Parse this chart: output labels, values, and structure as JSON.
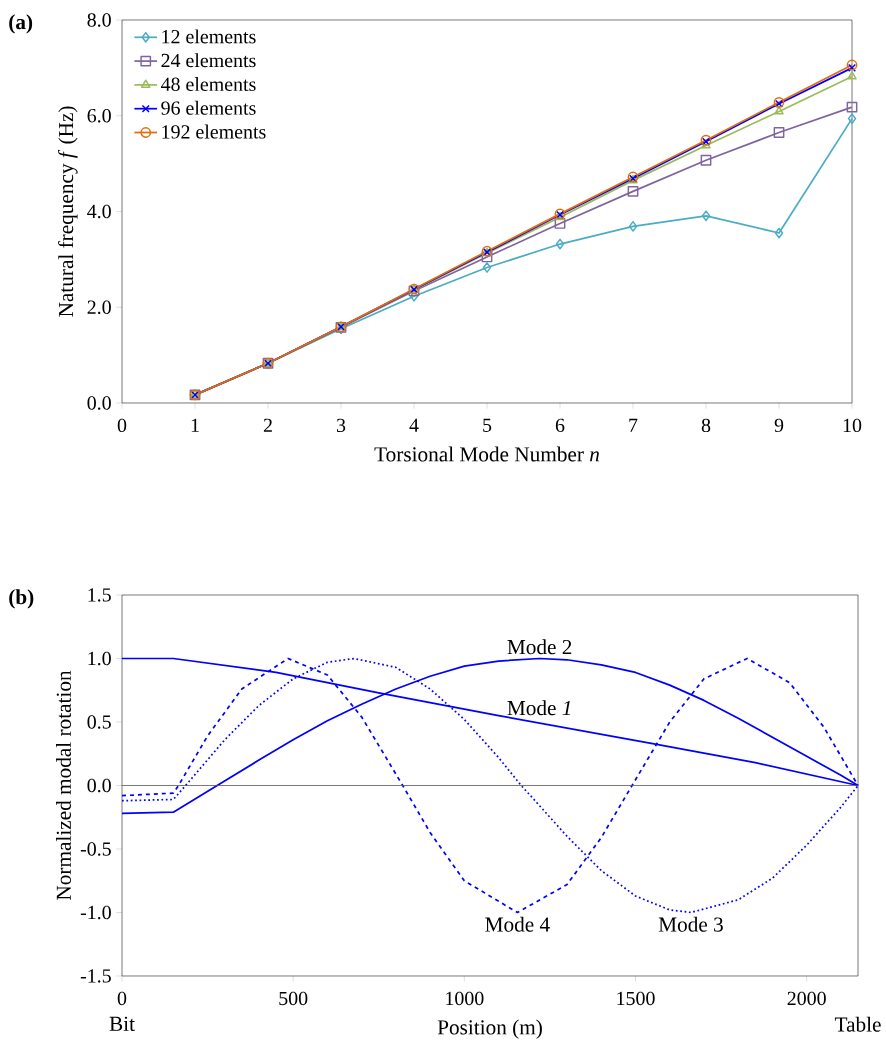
{
  "chart_data": [
    {
      "type": "line",
      "title": "(a)",
      "xlabel": "Torsional Mode Number *n*",
      "ylabel": "Natural frequency *f* (Hz)",
      "x": [
        1,
        2,
        3,
        4,
        5,
        6,
        7,
        8,
        9,
        10
      ],
      "series": [
        {
          "name": "12 elements",
          "color": "#4bacc6",
          "marker": "diamond",
          "values": [
            0.17,
            0.83,
            1.55,
            2.23,
            2.83,
            3.32,
            3.69,
            3.91,
            3.55,
            5.94
          ]
        },
        {
          "name": "24 elements",
          "color": "#8064a2",
          "marker": "square",
          "values": [
            0.17,
            0.83,
            1.58,
            2.34,
            3.05,
            3.75,
            4.42,
            5.07,
            5.65,
            6.18
          ]
        },
        {
          "name": "48 elements",
          "color": "#9bbb59",
          "marker": "triangle",
          "values": [
            0.17,
            0.83,
            1.59,
            2.36,
            3.13,
            3.88,
            4.65,
            5.38,
            6.09,
            6.82
          ]
        },
        {
          "name": "96 elements",
          "color": "#0000ff",
          "marker": "cross",
          "values": [
            0.17,
            0.83,
            1.59,
            2.37,
            3.15,
            3.93,
            4.69,
            5.46,
            6.25,
            7.0
          ]
        },
        {
          "name": "192 elements",
          "color": "#e46c0a",
          "marker": "circle",
          "values": [
            0.17,
            0.83,
            1.59,
            2.38,
            3.17,
            3.95,
            4.72,
            5.49,
            6.28,
            7.06
          ]
        }
      ],
      "xlim": [
        0,
        10
      ],
      "ylim": [
        0,
        8
      ],
      "xticks": [
        0,
        1,
        2,
        3,
        4,
        5,
        6,
        7,
        8,
        9,
        10
      ],
      "yticks": [
        {
          "value": 0,
          "label": "0.0"
        },
        {
          "value": 2,
          "label": "2.0"
        },
        {
          "value": 4,
          "label": "4.0"
        },
        {
          "value": 6,
          "label": "6.0"
        },
        {
          "value": 8,
          "label": "8.0"
        }
      ],
      "legend": "top left"
    },
    {
      "type": "line",
      "title": "(b)",
      "xlabel": "Position (m)",
      "ylabel": "Normalized modal rotation",
      "series": [
        {
          "color": "#0000ff",
          "line_style": "solid",
          "x": [
            0,
            150,
            450,
            750,
            1100,
            1550,
            1850,
            2150
          ],
          "values": [
            1.0,
            1.0,
            0.89,
            0.73,
            0.55,
            0.33,
            0.18,
            0
          ]
        },
        {
          "color": "#0000ff",
          "line_style": "solid",
          "x": [
            0,
            150,
            278,
            400,
            500,
            600,
            700,
            800,
            900,
            1000,
            1100,
            1220,
            1300,
            1400,
            1500,
            1600,
            1700,
            1800,
            1900,
            2000,
            2100,
            2150
          ],
          "values": [
            -0.22,
            -0.21,
            0,
            0.2,
            0.36,
            0.51,
            0.64,
            0.76,
            0.86,
            0.94,
            0.98,
            1.0,
            0.99,
            0.95,
            0.89,
            0.79,
            0.67,
            0.53,
            0.38,
            0.23,
            0.08,
            0
          ]
        },
        {
          "color": "#0000ff",
          "line_style": "dotted",
          "x": [
            0,
            150,
            186,
            300,
            400,
            500,
            600,
            678,
            800,
            900,
            1000,
            1100,
            1166,
            1200,
            1300,
            1400,
            1500,
            1600,
            1662,
            1800,
            1900,
            2000,
            2100,
            2150
          ],
          "values": [
            -0.12,
            -0.11,
            0,
            0.36,
            0.63,
            0.84,
            0.97,
            1.0,
            0.93,
            0.76,
            0.52,
            0.22,
            0,
            -0.1,
            -0.4,
            -0.67,
            -0.87,
            -0.98,
            -1.0,
            -0.9,
            -0.73,
            -0.47,
            -0.17,
            0
          ]
        },
        {
          "color": "#0000ff",
          "line_style": "dashed",
          "x": [
            0,
            150,
            165,
            250,
            350,
            485,
            600,
            700,
            820,
            900,
            1000,
            1155,
            1300,
            1400,
            1490,
            1600,
            1700,
            1826,
            1950,
            2050,
            2150
          ],
          "values": [
            -0.08,
            -0.06,
            0,
            0.39,
            0.76,
            1.0,
            0.87,
            0.54,
            0,
            -0.37,
            -0.75,
            -1.0,
            -0.78,
            -0.41,
            0,
            0.5,
            0.84,
            1.0,
            0.81,
            0.46,
            0
          ]
        }
      ],
      "xlim": [
        0,
        2150
      ],
      "ylim": [
        -1.5,
        1.5
      ],
      "xticks": [
        0,
        500,
        1000,
        1500,
        2000
      ],
      "yticks": [
        -1.5,
        {
          "value": -1,
          "label": "-1.0"
        },
        -0.5,
        {
          "value": 0,
          "label": "0.0"
        },
        0.5,
        {
          "value": 1,
          "label": "1.0"
        },
        1.5
      ],
      "ref_lines": [
        {
          "axis": "y",
          "value": 0,
          "color": "#555555"
        }
      ],
      "annotations": [
        "Bit",
        "Table",
        {
          "text": "Mode 2",
          "x": 1220,
          "y": 1.0
        },
        {
          "text": "Mode *1*",
          "x": 1220,
          "y": 0.52
        },
        {
          "text": "Mode 4",
          "x": 1155,
          "y": -1.0
        },
        {
          "text": "Mode 3",
          "x": 1662,
          "y": -1.0
        }
      ]
    }
  ]
}
